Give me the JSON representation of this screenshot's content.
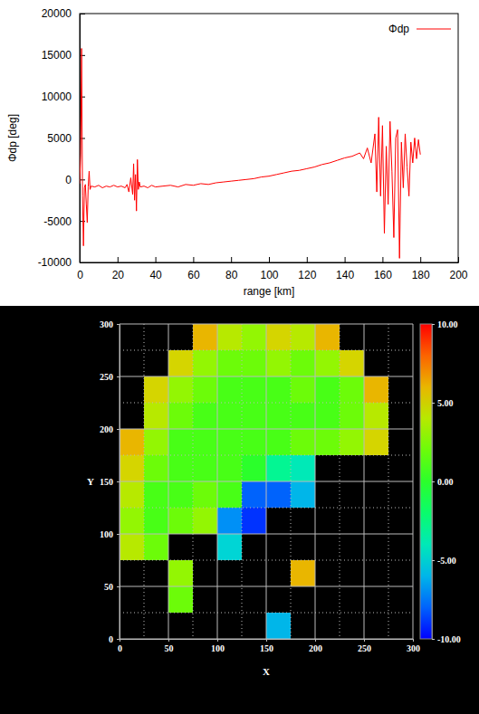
{
  "chart_data": [
    {
      "type": "line",
      "xlabel": "range [km]",
      "ylabel": "Φdp [deg]",
      "xlim": [
        0,
        200
      ],
      "ylim": [
        -10000,
        20000
      ],
      "xticks": [
        0,
        20,
        40,
        60,
        80,
        100,
        120,
        140,
        160,
        180,
        200
      ],
      "yticks": [
        -10000,
        -5000,
        0,
        5000,
        10000,
        15000,
        20000
      ],
      "legend": "top-right",
      "x": [
        0,
        0.5,
        1,
        1.5,
        2,
        2.5,
        3,
        3.5,
        4,
        4.5,
        5,
        5.5,
        6,
        8,
        10,
        12,
        14,
        16,
        18,
        20,
        22,
        24,
        25,
        26,
        27,
        28,
        28.5,
        29,
        29.5,
        30,
        30.5,
        31,
        31.5,
        32,
        34,
        36,
        38,
        40,
        44,
        48,
        52,
        56,
        60,
        64,
        68,
        72,
        76,
        80,
        84,
        88,
        92,
        96,
        100,
        104,
        108,
        112,
        116,
        120,
        124,
        128,
        132,
        136,
        140,
        144,
        148,
        150,
        152,
        154,
        156,
        157,
        158,
        159,
        160,
        161,
        162,
        163,
        164,
        165,
        166,
        167,
        168,
        169,
        170,
        171,
        172,
        173,
        174,
        175,
        176,
        177,
        178,
        179,
        180
      ],
      "series": [
        {
          "name": "Φdp",
          "color": "#ff0000",
          "values": [
            -500,
            3000,
            15800,
            -2000,
            -8000,
            -1000,
            -600,
            -3000,
            -5200,
            -900,
            1000,
            -1200,
            -800,
            -900,
            -700,
            -1000,
            -800,
            -900,
            -700,
            -900,
            -800,
            -1000,
            -600,
            -1500,
            200,
            -1800,
            1900,
            -2500,
            600,
            -3800,
            2400,
            -1200,
            -300,
            -900,
            -800,
            -1000,
            -700,
            -900,
            -800,
            -700,
            -900,
            -600,
            -700,
            -500,
            -600,
            -400,
            -300,
            -200,
            -100,
            0,
            100,
            300,
            400,
            600,
            800,
            1000,
            1100,
            1300,
            1500,
            1800,
            2000,
            2300,
            2600,
            2800,
            3200,
            2500,
            3800,
            2000,
            5500,
            -1500,
            7500,
            -2000,
            6500,
            -6500,
            4000,
            -3000,
            7000,
            1000,
            -7000,
            5000,
            6000,
            -9500,
            4500,
            -1000,
            5500,
            1500,
            -2000,
            4500,
            2000,
            5000,
            2500,
            4800,
            3000
          ]
        }
      ]
    },
    {
      "type": "heatmap",
      "xlabel": "X",
      "ylabel": "Y",
      "xlim": [
        0,
        300
      ],
      "ylim": [
        0,
        300
      ],
      "xticks": [
        0,
        50,
        100,
        150,
        200,
        250,
        300
      ],
      "yticks": [
        0,
        50,
        100,
        150,
        200,
        250,
        300
      ],
      "grid": true,
      "x_edges": [
        0,
        25,
        50,
        75,
        100,
        125,
        150,
        175,
        200,
        225,
        250,
        275,
        300
      ],
      "y_edges": [
        0,
        25,
        50,
        75,
        100,
        125,
        150,
        175,
        200,
        225,
        250,
        275,
        300
      ],
      "cells": [
        [
          null,
          null,
          null,
          null,
          null,
          null,
          -6,
          null,
          null,
          null,
          null,
          null
        ],
        [
          null,
          null,
          2,
          null,
          null,
          null,
          null,
          null,
          null,
          null,
          null,
          null
        ],
        [
          null,
          null,
          3,
          null,
          null,
          null,
          null,
          6,
          null,
          null,
          null,
          null
        ],
        [
          4,
          2,
          null,
          null,
          -5,
          null,
          null,
          null,
          null,
          null,
          null,
          null
        ],
        [
          3,
          1,
          2,
          3,
          -7,
          -9,
          null,
          null,
          null,
          null,
          null,
          null
        ],
        [
          4,
          1,
          1,
          2,
          1,
          -8,
          -8,
          -6,
          null,
          null,
          null,
          null
        ],
        [
          5,
          2,
          1,
          1,
          1,
          0,
          -3,
          -4,
          null,
          null,
          null,
          null
        ],
        [
          6,
          3,
          1,
          1,
          1,
          1,
          1,
          2,
          2,
          3,
          5,
          null
        ],
        [
          null,
          4,
          2,
          1,
          1,
          1,
          1,
          1,
          1,
          2,
          4,
          null
        ],
        [
          null,
          5,
          3,
          2,
          1,
          1,
          1,
          2,
          1,
          2,
          6,
          null
        ],
        [
          null,
          null,
          5,
          3,
          2,
          2,
          3,
          2,
          3,
          5,
          null,
          null
        ],
        [
          null,
          null,
          null,
          6,
          4,
          3,
          5,
          4,
          6,
          null,
          null,
          null
        ]
      ],
      "colorbar": {
        "range": [
          -10,
          10
        ],
        "ticks": [
          {
            "value": 10,
            "label": "10.00"
          },
          {
            "value": 5,
            "label": "5.00"
          },
          {
            "value": 0,
            "label": "0.00"
          },
          {
            "value": -5,
            "label": "-5.00"
          },
          {
            "value": -10,
            "label": "-10.00"
          }
        ]
      }
    }
  ]
}
